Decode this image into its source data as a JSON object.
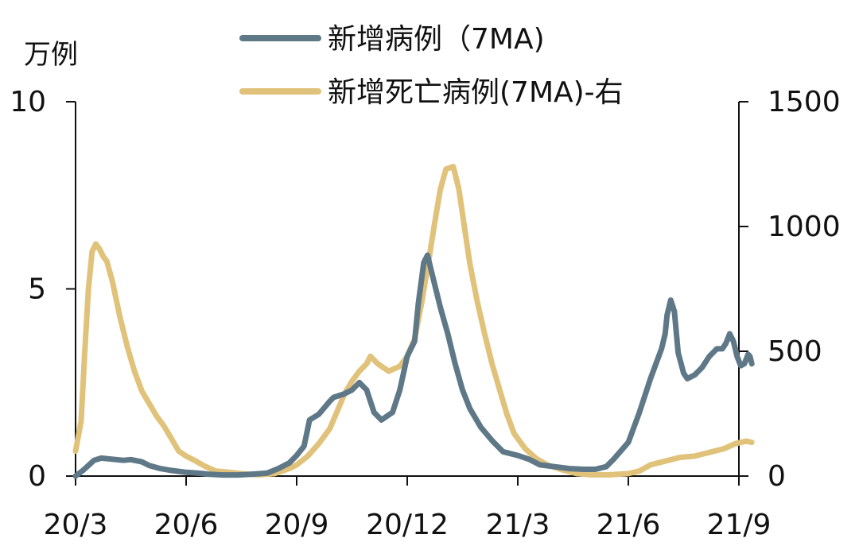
{
  "chart_data": {
    "type": "line",
    "left_axis_unit": "万例",
    "left_ylim": [
      0,
      10
    ],
    "left_yticks": [
      0,
      5,
      10
    ],
    "right_ylim": [
      0,
      1500
    ],
    "right_yticks": [
      0,
      500,
      1000,
      1500
    ],
    "xlim": [
      0,
      18
    ],
    "x_ticks": [
      {
        "x": 0,
        "label": "20/3"
      },
      {
        "x": 3,
        "label": "20/6"
      },
      {
        "x": 6,
        "label": "20/9"
      },
      {
        "x": 9,
        "label": "20/12"
      },
      {
        "x": 12,
        "label": "21/3"
      },
      {
        "x": 15,
        "label": "21/6"
      },
      {
        "x": 18,
        "label": "21/9"
      }
    ],
    "grid": false,
    "legend_position": "top",
    "series": [
      {
        "name": "新增病例（7MA)",
        "axis": "left",
        "color": "#5f7888",
        "points": [
          [
            0,
            0.0
          ],
          [
            0.2,
            0.15
          ],
          [
            0.5,
            0.42
          ],
          [
            0.7,
            0.48
          ],
          [
            1.0,
            0.45
          ],
          [
            1.3,
            0.42
          ],
          [
            1.5,
            0.44
          ],
          [
            1.8,
            0.38
          ],
          [
            2.0,
            0.28
          ],
          [
            2.3,
            0.2
          ],
          [
            2.6,
            0.15
          ],
          [
            3.0,
            0.1
          ],
          [
            3.3,
            0.08
          ],
          [
            3.6,
            0.05
          ],
          [
            4.0,
            0.03
          ],
          [
            4.4,
            0.03
          ],
          [
            4.8,
            0.05
          ],
          [
            5.2,
            0.08
          ],
          [
            5.5,
            0.2
          ],
          [
            5.8,
            0.35
          ],
          [
            6.0,
            0.55
          ],
          [
            6.2,
            0.8
          ],
          [
            6.35,
            1.5
          ],
          [
            6.6,
            1.65
          ],
          [
            6.9,
            2.0
          ],
          [
            7.0,
            2.1
          ],
          [
            7.3,
            2.2
          ],
          [
            7.5,
            2.3
          ],
          [
            7.7,
            2.5
          ],
          [
            7.9,
            2.3
          ],
          [
            8.1,
            1.7
          ],
          [
            8.3,
            1.5
          ],
          [
            8.6,
            1.7
          ],
          [
            8.8,
            2.3
          ],
          [
            9.0,
            3.2
          ],
          [
            9.2,
            3.6
          ],
          [
            9.3,
            4.6
          ],
          [
            9.45,
            5.7
          ],
          [
            9.55,
            5.9
          ],
          [
            9.7,
            5.3
          ],
          [
            9.9,
            4.5
          ],
          [
            10.1,
            3.8
          ],
          [
            10.3,
            3.0
          ],
          [
            10.5,
            2.3
          ],
          [
            10.7,
            1.8
          ],
          [
            11.0,
            1.3
          ],
          [
            11.3,
            0.95
          ],
          [
            11.6,
            0.65
          ],
          [
            12.0,
            0.55
          ],
          [
            12.3,
            0.45
          ],
          [
            12.6,
            0.3
          ],
          [
            13.0,
            0.25
          ],
          [
            13.4,
            0.2
          ],
          [
            13.8,
            0.18
          ],
          [
            14.1,
            0.18
          ],
          [
            14.4,
            0.25
          ],
          [
            14.6,
            0.45
          ],
          [
            15.0,
            0.9
          ],
          [
            15.3,
            1.7
          ],
          [
            15.6,
            2.6
          ],
          [
            15.9,
            3.4
          ],
          [
            16.0,
            3.8
          ],
          [
            16.05,
            4.3
          ],
          [
            16.15,
            4.7
          ],
          [
            16.25,
            4.4
          ],
          [
            16.35,
            3.3
          ],
          [
            16.5,
            2.75
          ],
          [
            16.6,
            2.6
          ],
          [
            16.8,
            2.7
          ],
          [
            17.0,
            2.9
          ],
          [
            17.2,
            3.2
          ],
          [
            17.4,
            3.4
          ],
          [
            17.55,
            3.4
          ],
          [
            17.65,
            3.55
          ],
          [
            17.75,
            3.8
          ],
          [
            17.85,
            3.6
          ],
          [
            17.95,
            3.2
          ],
          [
            18.05,
            2.95
          ],
          [
            18.15,
            3.0
          ],
          [
            18.25,
            3.25
          ],
          [
            18.3,
            3.2
          ],
          [
            18.35,
            3.0
          ]
        ]
      },
      {
        "name": "新增死亡病例(7MA)-右",
        "axis": "right",
        "color": "#e1c27a",
        "points": [
          [
            0,
            100
          ],
          [
            0.15,
            220
          ],
          [
            0.25,
            500
          ],
          [
            0.35,
            750
          ],
          [
            0.45,
            900
          ],
          [
            0.55,
            930
          ],
          [
            0.65,
            910
          ],
          [
            0.75,
            880
          ],
          [
            0.85,
            860
          ],
          [
            1.0,
            780
          ],
          [
            1.2,
            640
          ],
          [
            1.4,
            520
          ],
          [
            1.6,
            420
          ],
          [
            1.8,
            340
          ],
          [
            2.0,
            290
          ],
          [
            2.2,
            240
          ],
          [
            2.4,
            200
          ],
          [
            2.6,
            150
          ],
          [
            2.8,
            100
          ],
          [
            3.0,
            80
          ],
          [
            3.2,
            65
          ],
          [
            3.5,
            40
          ],
          [
            3.8,
            20
          ],
          [
            4.2,
            15
          ],
          [
            4.6,
            8
          ],
          [
            5.0,
            5
          ],
          [
            5.4,
            10
          ],
          [
            5.8,
            30
          ],
          [
            6.0,
            45
          ],
          [
            6.3,
            80
          ],
          [
            6.6,
            130
          ],
          [
            6.9,
            190
          ],
          [
            7.1,
            260
          ],
          [
            7.3,
            330
          ],
          [
            7.5,
            380
          ],
          [
            7.7,
            420
          ],
          [
            7.9,
            450
          ],
          [
            8.0,
            480
          ],
          [
            8.2,
            450
          ],
          [
            8.5,
            420
          ],
          [
            8.8,
            440
          ],
          [
            9.0,
            480
          ],
          [
            9.2,
            550
          ],
          [
            9.4,
            700
          ],
          [
            9.6,
            880
          ],
          [
            9.75,
            1020
          ],
          [
            9.9,
            1150
          ],
          [
            10.05,
            1230
          ],
          [
            10.25,
            1240
          ],
          [
            10.4,
            1150
          ],
          [
            10.55,
            1000
          ],
          [
            10.7,
            850
          ],
          [
            10.9,
            700
          ],
          [
            11.1,
            570
          ],
          [
            11.3,
            450
          ],
          [
            11.5,
            350
          ],
          [
            11.7,
            250
          ],
          [
            11.9,
            170
          ],
          [
            12.2,
            110
          ],
          [
            12.5,
            70
          ],
          [
            12.8,
            45
          ],
          [
            13.2,
            25
          ],
          [
            13.6,
            10
          ],
          [
            14.0,
            5
          ],
          [
            14.5,
            5
          ],
          [
            15.0,
            10
          ],
          [
            15.3,
            20
          ],
          [
            15.6,
            45
          ],
          [
            16.0,
            60
          ],
          [
            16.4,
            75
          ],
          [
            16.8,
            80
          ],
          [
            17.2,
            95
          ],
          [
            17.6,
            110
          ],
          [
            17.9,
            130
          ],
          [
            18.2,
            140
          ],
          [
            18.35,
            135
          ]
        ]
      }
    ]
  }
}
